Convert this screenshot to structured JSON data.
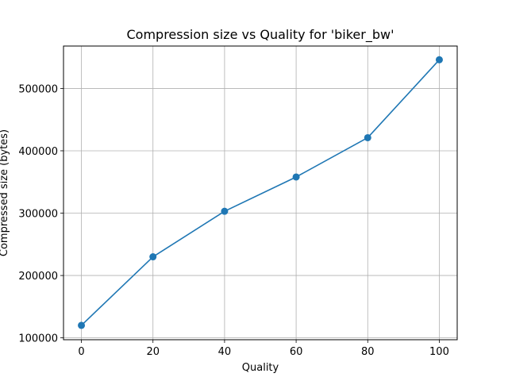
{
  "chart_data": {
    "type": "line",
    "title": "Compression size vs Quality for 'biker_bw'",
    "xlabel": "Quality",
    "ylabel": "Compressed size (bytes)",
    "x": [
      0,
      20,
      40,
      60,
      80,
      100
    ],
    "series": [
      {
        "values": [
          120000,
          230000,
          303000,
          358000,
          421000,
          546000
        ],
        "color": "#1f77b4",
        "marker": "circle"
      }
    ],
    "xlim": [
      -5,
      105
    ],
    "ylim": [
      97000,
      568000
    ],
    "xticks": [
      0,
      20,
      40,
      60,
      80,
      100
    ],
    "yticks": [
      100000,
      200000,
      300000,
      400000,
      500000
    ],
    "xtick_labels": [
      "0",
      "20",
      "40",
      "60",
      "80",
      "100"
    ],
    "ytick_labels": [
      "100000",
      "200000",
      "300000",
      "400000",
      "500000"
    ],
    "grid": true,
    "legend": false
  }
}
